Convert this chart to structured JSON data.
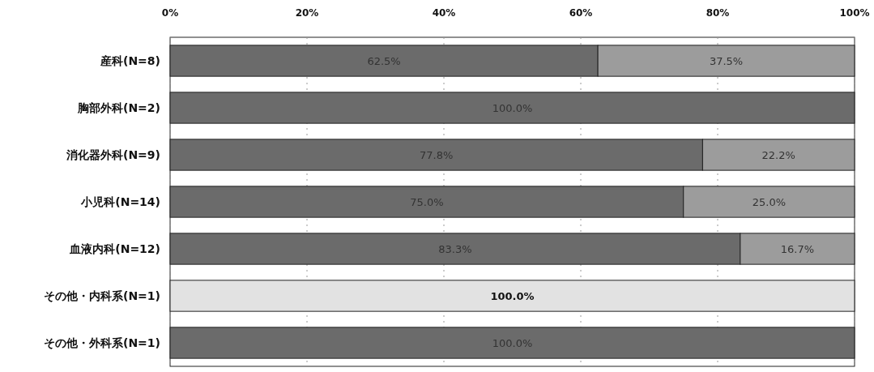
{
  "chart_data": {
    "type": "bar",
    "orientation": "horizontal",
    "stacked": true,
    "categories": [
      "産科(N=8)",
      "胸部外科(N=2)",
      "消化器外科(N=9)",
      "小児科(N=14)",
      "血液内科(N=12)",
      "その他・内科系(N=1)",
      "その他・外科系(N=1)"
    ],
    "series": [
      {
        "color": "#6b6b6b",
        "values": [
          62.5,
          100.0,
          77.8,
          75.0,
          83.3,
          null,
          100.0
        ],
        "value_labels": [
          "62.5%",
          "100.0%",
          "77.8%",
          "75.0%",
          "83.3%",
          null,
          "100.0%"
        ]
      },
      {
        "color": "#9c9c9c",
        "values": [
          37.5,
          null,
          22.2,
          25.0,
          16.7,
          null,
          null
        ],
        "value_labels": [
          "37.5%",
          null,
          "22.2%",
          "25.0%",
          "16.7%",
          null,
          null
        ]
      },
      {
        "color": "#e2e2e2",
        "values": [
          null,
          null,
          null,
          null,
          null,
          100.0,
          null
        ],
        "value_labels": [
          null,
          null,
          null,
          null,
          null,
          "100.0%",
          null
        ]
      }
    ],
    "xlim": [
      0,
      100
    ],
    "xticks": [
      {
        "value": 0,
        "label": "0%"
      },
      {
        "value": 20,
        "label": "20%"
      },
      {
        "value": 40,
        "label": "40%"
      },
      {
        "value": 60,
        "label": "60%"
      },
      {
        "value": 80,
        "label": "80%"
      },
      {
        "value": 100,
        "label": "100%"
      }
    ],
    "grid": "x"
  }
}
